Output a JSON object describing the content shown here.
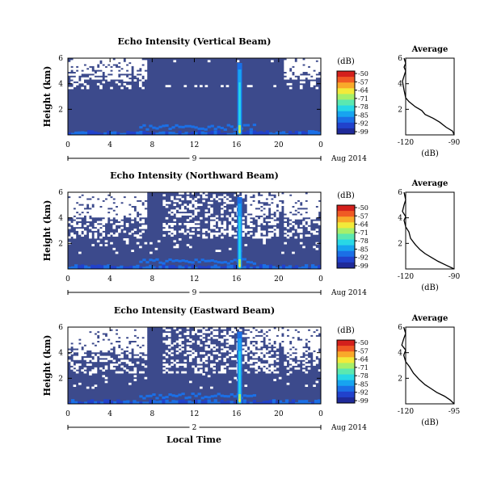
{
  "figure": {
    "xlabel": "Local Time",
    "date_label": "Aug 2014",
    "colorbar_unit": "(dB)",
    "avg_xlabel": "(dB)",
    "avg_title": "Average",
    "ylabel": "Height (km)"
  },
  "colors": {
    "background_echo": "#3c4a8c",
    "no_data": "#ffffff",
    "jet": [
      "#1f2a99",
      "#2142cc",
      "#1b6fe6",
      "#17a4f0",
      "#28d7e6",
      "#5be8b0",
      "#a6ef6a",
      "#f2ea3a",
      "#f9a92a",
      "#f05a24",
      "#d4201c"
    ]
  },
  "chart_data": [
    {
      "type": "heatmap",
      "title": "Echo Intensity (Vertical Beam)",
      "ylabel": "Height (km)",
      "x_ticks": [
        "0",
        "4",
        "8",
        "12",
        "16",
        "20",
        "0"
      ],
      "day_label": "9",
      "xlim": [
        0,
        24
      ],
      "ylim": [
        0,
        6
      ],
      "y_ticks": [
        "6",
        "4",
        "2"
      ],
      "colorbar_ticks": [
        "-50",
        "-57",
        "-64",
        "-71",
        "-78",
        "-85",
        "-92",
        "-99"
      ],
      "spike_hour": 16.3,
      "avg_title": "Average",
      "avg_x_ticks": [
        "-120",
        "-90"
      ],
      "avg_xlim": [
        -120,
        -90
      ],
      "avg_profile": [
        [
          -90,
          0.0
        ],
        [
          -91,
          0.3
        ],
        [
          -95,
          0.6
        ],
        [
          -99,
          1.0
        ],
        [
          -103,
          1.3
        ],
        [
          -108,
          1.6
        ],
        [
          -110,
          1.9
        ],
        [
          -114,
          2.2
        ],
        [
          -118,
          2.6
        ],
        [
          -120,
          2.9
        ],
        [
          -121,
          3.5
        ],
        [
          -122,
          4.2
        ],
        [
          -121,
          4.6
        ],
        [
          -120,
          5.0
        ],
        [
          -121,
          5.3
        ],
        [
          -120,
          5.6
        ],
        [
          -121,
          6.0
        ]
      ]
    },
    {
      "type": "heatmap",
      "title": "Echo Intensity (Northward Beam)",
      "ylabel": "Height (km)",
      "x_ticks": [
        "0",
        "4",
        "8",
        "12",
        "16",
        "20",
        "0"
      ],
      "day_label": "9",
      "xlim": [
        0,
        24
      ],
      "ylim": [
        0,
        6
      ],
      "y_ticks": [
        "6",
        "4",
        "2"
      ],
      "colorbar_ticks": [
        "-50",
        "-57",
        "-64",
        "-71",
        "-78",
        "-85",
        "-92",
        "-99"
      ],
      "spike_hour": 16.3,
      "avg_title": "Average",
      "avg_x_ticks": [
        "-120",
        "-90"
      ],
      "avg_xlim": [
        -120,
        -90
      ],
      "avg_profile": [
        [
          -90,
          0.0
        ],
        [
          -95,
          0.3
        ],
        [
          -100,
          0.6
        ],
        [
          -104,
          0.9
        ],
        [
          -108,
          1.2
        ],
        [
          -111,
          1.5
        ],
        [
          -114,
          1.9
        ],
        [
          -117,
          2.4
        ],
        [
          -118,
          2.9
        ],
        [
          -120,
          3.3
        ],
        [
          -121,
          3.8
        ],
        [
          -120,
          4.1
        ],
        [
          -122,
          4.5
        ],
        [
          -121,
          5.0
        ],
        [
          -120,
          5.4
        ],
        [
          -121,
          6.0
        ]
      ]
    },
    {
      "type": "heatmap",
      "title": "Echo Intensity (Eastward Beam)",
      "ylabel": "Height (km)",
      "x_ticks": [
        "0",
        "4",
        "8",
        "12",
        "16",
        "20",
        "0"
      ],
      "day_label": "2",
      "xlim": [
        0,
        24
      ],
      "ylim": [
        0,
        6
      ],
      "y_ticks": [
        "6",
        "4",
        "2"
      ],
      "colorbar_ticks": [
        "-50",
        "-57",
        "-64",
        "-71",
        "-78",
        "-85",
        "-92",
        "-99"
      ],
      "spike_hour": 16.3,
      "avg_title": "Average",
      "avg_x_ticks": [
        "-120",
        "-95"
      ],
      "avg_xlim": [
        -120,
        -95
      ],
      "avg_profile": [
        [
          -95,
          0.0
        ],
        [
          -97,
          0.3
        ],
        [
          -100,
          0.6
        ],
        [
          -104,
          0.9
        ],
        [
          -107,
          1.2
        ],
        [
          -110,
          1.5
        ],
        [
          -113,
          1.9
        ],
        [
          -116,
          2.4
        ],
        [
          -118,
          2.9
        ],
        [
          -120,
          3.3
        ],
        [
          -121,
          3.8
        ],
        [
          -120,
          4.2
        ],
        [
          -122,
          4.6
        ],
        [
          -121,
          5.1
        ],
        [
          -120,
          5.5
        ],
        [
          -121,
          6.0
        ]
      ]
    }
  ]
}
